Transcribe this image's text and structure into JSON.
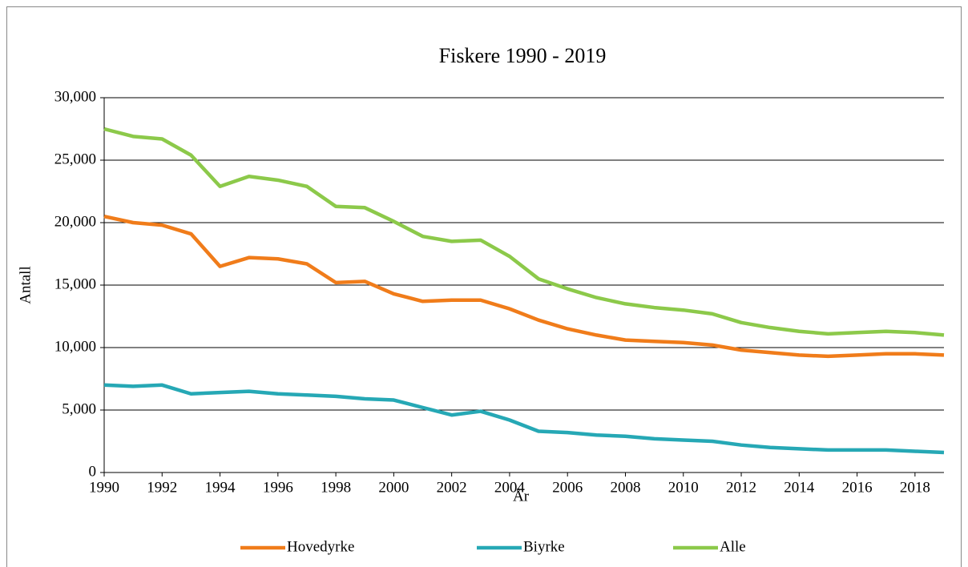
{
  "chart_data": {
    "type": "line",
    "title": "Fiskere 1990 - 2019",
    "x_label": "År",
    "y_label": "Antall",
    "x": [
      1990,
      1991,
      1992,
      1993,
      1994,
      1995,
      1996,
      1997,
      1998,
      1999,
      2000,
      2001,
      2002,
      2003,
      2004,
      2005,
      2006,
      2007,
      2008,
      2009,
      2010,
      2011,
      2012,
      2013,
      2014,
      2015,
      2016,
      2017,
      2018,
      2019
    ],
    "series": [
      {
        "name": "Hovedyrke",
        "color": "#f07c1a",
        "values": [
          20500,
          20000,
          19800,
          19100,
          16500,
          17200,
          17100,
          16700,
          15200,
          15300,
          14300,
          13700,
          13800,
          13800,
          13100,
          12200,
          11500,
          11000,
          10600,
          10500,
          10400,
          10200,
          9800,
          9600,
          9400,
          9300,
          9400,
          9500,
          9500,
          9400
        ]
      },
      {
        "name": "Biyrke",
        "color": "#26a8b5",
        "values": [
          7000,
          6900,
          7000,
          6300,
          6400,
          6500,
          6300,
          6200,
          6100,
          5900,
          5800,
          5200,
          4600,
          4900,
          4200,
          3300,
          3200,
          3000,
          2900,
          2700,
          2600,
          2500,
          2200,
          2000,
          1900,
          1800,
          1800,
          1800,
          1700,
          1600
        ]
      },
      {
        "name": "Alle",
        "color": "#8cc94a",
        "values": [
          27500,
          26900,
          26700,
          25400,
          22900,
          23700,
          23400,
          22900,
          21300,
          21200,
          20100,
          18900,
          18500,
          18600,
          17300,
          15500,
          14700,
          14000,
          13500,
          13200,
          13000,
          12700,
          12000,
          11600,
          11300,
          11100,
          11200,
          11300,
          11200,
          11000
        ]
      }
    ],
    "xlim": [
      1990,
      2019
    ],
    "xticks": [
      1990,
      1992,
      1994,
      1996,
      1998,
      2000,
      2002,
      2004,
      2006,
      2008,
      2010,
      2012,
      2014,
      2016,
      2018
    ],
    "ylim": [
      0,
      30000
    ],
    "yticks": [
      0,
      {
        "value": 5000,
        "label": "5,000"
      },
      {
        "value": 10000,
        "label": "10,000"
      },
      {
        "value": 15000,
        "label": "15,000"
      },
      {
        "value": 20000,
        "label": "20,000"
      },
      {
        "value": 25000,
        "label": "25,000"
      },
      {
        "value": 30000,
        "label": "30,000"
      }
    ],
    "grid": true,
    "legend": "bottom"
  }
}
